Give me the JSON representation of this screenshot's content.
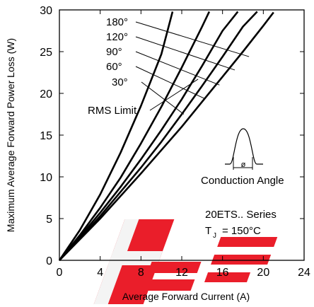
{
  "chart_data": {
    "type": "line",
    "xlabel": "Average Forward Current (A)",
    "ylabel": "Maximum Average Forward Power Loss (W)",
    "xlim": [
      0,
      24
    ],
    "ylim": [
      0,
      30
    ],
    "x_ticks": [
      "0",
      "4",
      "8",
      "12",
      "16",
      "20",
      "24"
    ],
    "y_ticks": [
      "0",
      "5",
      "10",
      "15",
      "20",
      "25",
      "30"
    ],
    "grid": false,
    "series": [
      {
        "name": "180°",
        "x": [
          0,
          2,
          4,
          6,
          8,
          10,
          12,
          14,
          16,
          18,
          20,
          21
        ],
        "y": [
          0,
          2.5,
          5.0,
          7.7,
          10.4,
          13.2,
          16.0,
          19.0,
          22.0,
          25.0,
          28.1,
          29.7
        ]
      },
      {
        "name": "120°",
        "x": [
          0,
          2,
          4,
          6,
          8,
          10,
          12,
          14,
          16,
          18,
          19.4
        ],
        "y": [
          0,
          2.6,
          5.3,
          8.2,
          11.1,
          14.2,
          17.5,
          20.9,
          24.4,
          28.0,
          29.8
        ]
      },
      {
        "name": "90°",
        "x": [
          0,
          2,
          4,
          6,
          8,
          10,
          12,
          14,
          16,
          17.5
        ],
        "y": [
          0,
          2.8,
          5.7,
          8.8,
          12.1,
          15.6,
          19.3,
          23.3,
          27.5,
          29.8
        ]
      },
      {
        "name": "60°",
        "x": [
          0,
          2,
          4,
          6,
          8,
          10,
          12,
          14,
          14.7
        ],
        "y": [
          0,
          3.0,
          6.3,
          9.9,
          14.0,
          18.4,
          23.1,
          28.0,
          29.8
        ]
      },
      {
        "name": "30°",
        "x": [
          0,
          2,
          4,
          6,
          8,
          10,
          11.1
        ],
        "y": [
          0,
          3.6,
          7.9,
          12.9,
          18.5,
          24.7,
          29.8
        ]
      }
    ],
    "rms_limit": {
      "label": "RMS Limit",
      "x": [
        8,
        13.6,
        19.5
      ],
      "y": [
        14.0,
        21.7,
        29.8
      ]
    },
    "annotations": {
      "inset_label": "Conduction Angle",
      "inset_symbol": "ø",
      "series_title": "20ETS.. Series",
      "tj_label": "T",
      "tj_sub": "J",
      "tj_value": "= 150°C"
    },
    "watermark": "HEP"
  }
}
